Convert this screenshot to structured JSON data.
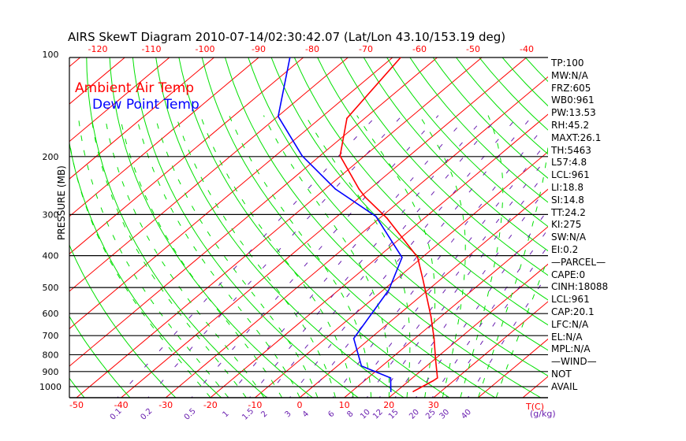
{
  "chart_data": {
    "type": "line",
    "subtype": "skew-t log-p",
    "title": "AIRS SkewT Diagram 2010-07-14/02:30:42.07 (Lat/Lon 43.10/153.19 deg)",
    "ylabel": "PRESSURE (MB)",
    "xlabel": "T(C)",
    "mixing_ratio_label": "(g/kg)",
    "ylim": [
      1080,
      100
    ],
    "pressure_ticks": [
      100,
      200,
      300,
      400,
      500,
      600,
      700,
      800,
      900,
      1000
    ],
    "top_temp_ticks": [
      -120,
      -110,
      -100,
      -90,
      -80,
      -70,
      -60,
      -50,
      -40
    ],
    "bottom_temp_ticks": [
      -50,
      -40,
      -30,
      -20,
      -10,
      0,
      10,
      20,
      30
    ],
    "mixing_ratio_ticks": [
      "0.1",
      "0.2",
      "0.5",
      "1",
      "1.5",
      "2",
      "3",
      "4",
      "6",
      "8",
      "10",
      "12",
      "15",
      "20",
      "25",
      "30",
      "40"
    ],
    "legend": [
      {
        "name": "Ambient Air Temp",
        "color": "#ff0000"
      },
      {
        "name": "Dew Point Temp",
        "color": "#0000ff"
      }
    ],
    "legend_placement": "top-left",
    "series": [
      {
        "name": "Ambient Air Temp",
        "color": "#ff0000",
        "pressure": [
          100,
          153,
          199,
          251,
          265,
          308,
          405,
          473,
          613,
          714,
          832,
          941,
          960,
          1035
        ],
        "temperature": [
          -68.2,
          -64,
          -55.5,
          -42.4,
          -39,
          -28.3,
          -11,
          -3.9,
          7.8,
          14.3,
          20.5,
          25.6,
          25.4,
          23.8
        ]
      },
      {
        "name": "Dew Point Temp",
        "color": "#0000ff",
        "pressure": [
          100,
          151,
          199,
          251,
          304,
          405,
          508,
          714,
          866,
          941,
          1035
        ],
        "temperature": [
          -93,
          -79.9,
          -64,
          -47.7,
          -31.3,
          -14.5,
          -8.8,
          -3.7,
          5.4,
          15.1,
          18.8
        ]
      }
    ],
    "background_lines": {
      "isotherms_color": "#ff0000",
      "dry_adiabats_color": "#00e000",
      "moist_adiabats_color": "#00e000",
      "mixing_ratio_color": "#6a1fb0"
    }
  },
  "stats": [
    "TP:100",
    "MW:N/A",
    "FRZ:605",
    "WB0:961",
    "PW:13.53",
    "RH:45.2",
    "MAXT:26.1",
    "TH:5463",
    "L57:4.8",
    "LCL:961",
    "LI:18.8",
    "SI:14.8",
    "TT:24.2",
    "KI:275",
    "SW:N/A",
    "EI:0.2",
    "—PARCEL—",
    "CAPE:0",
    "CINH:18088",
    "LCL:961",
    "CAP:20.1",
    "LFC:N/A",
    "EL:N/A",
    "MPL:N/A",
    "—WIND—",
    "NOT",
    "AVAIL"
  ]
}
